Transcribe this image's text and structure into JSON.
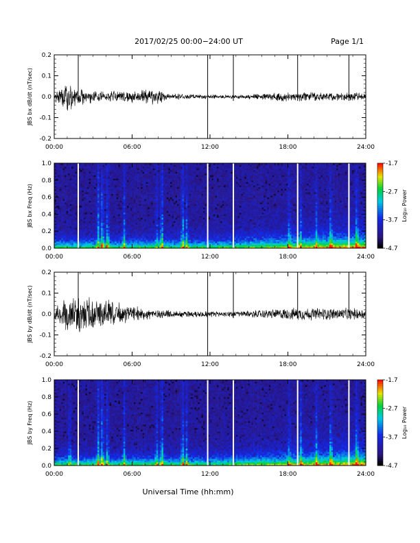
{
  "header": {
    "title": "2017/02/25  00:00−24:00 UT",
    "page": "Page 1/1"
  },
  "xlabel": "Universal Time (hh:mm)",
  "time_ticks": [
    "00:00",
    "06:00",
    "12:00",
    "18:00",
    "24:00"
  ],
  "colorbar": {
    "label": "Log₁₀ Power",
    "ticks": [
      "-1.7",
      "-2.7",
      "-3.7",
      "-4.7"
    ],
    "range": [
      -4.7,
      -1.7
    ]
  },
  "colors": {
    "background": "#ffffff",
    "trace": "#000000",
    "spectrogram_background": "#2a1580",
    "gap": "#ffffff"
  },
  "chart_data": [
    {
      "type": "line",
      "panel": "bx-dbdt",
      "ylabel": "JBS bx dB/dt (nT/sec)",
      "ylim": [
        -0.2,
        0.2
      ],
      "yticks": [
        "0.2",
        "0.1",
        "0.0",
        "-0.1",
        "-0.2"
      ],
      "xlim_hours": [
        0,
        24
      ],
      "envelope": [
        {
          "hour": 0,
          "amp": 0.02
        },
        {
          "hour": 1,
          "amp": 0.08
        },
        {
          "hour": 2,
          "amp": 0.04
        },
        {
          "hour": 4,
          "amp": 0.03
        },
        {
          "hour": 8,
          "amp": 0.04
        },
        {
          "hour": 9,
          "amp": 0.015
        },
        {
          "hour": 14,
          "amp": 0.01
        },
        {
          "hour": 18,
          "amp": 0.025
        },
        {
          "hour": 24,
          "amp": 0.02
        }
      ],
      "spikes": [
        {
          "hour": 1.85,
          "min": -0.02,
          "max": 0.2
        },
        {
          "hour": 11.82,
          "min": -0.2,
          "max": 0.2
        },
        {
          "hour": 13.8,
          "min": -0.02,
          "max": 0.2
        },
        {
          "hour": 18.75,
          "min": -0.02,
          "max": 0.2
        },
        {
          "hour": 22.7,
          "min": -0.02,
          "max": 0.2
        }
      ]
    },
    {
      "type": "heatmap",
      "panel": "bx-spectrogram",
      "ylabel": "JBS bx Freq (Hz)",
      "ylim": [
        0.0,
        1.0
      ],
      "yticks": [
        "1.0",
        "0.8",
        "0.6",
        "0.4",
        "0.2",
        "0.0"
      ],
      "xlim_hours": [
        0,
        24
      ],
      "value_range_log10": [
        -4.7,
        -1.7
      ],
      "gaps_hours": [
        1.85,
        11.82,
        13.8,
        18.75,
        22.7
      ],
      "activity_bursts": [
        {
          "hour": 3.4,
          "level": 0.8
        },
        {
          "hour": 3.7,
          "level": 0.9
        },
        {
          "hour": 4.1,
          "level": 0.7
        },
        {
          "hour": 5.4,
          "level": 0.6
        },
        {
          "hour": 7.9,
          "level": 0.5
        },
        {
          "hour": 8.3,
          "level": 0.9
        },
        {
          "hour": 9.9,
          "level": 0.8
        },
        {
          "hour": 10.2,
          "level": 0.6
        },
        {
          "hour": 18.1,
          "level": 0.5
        },
        {
          "hour": 19.0,
          "level": 0.5
        },
        {
          "hour": 20.2,
          "level": 0.5
        },
        {
          "hour": 21.3,
          "level": 0.6
        },
        {
          "hour": 23.3,
          "level": 0.6
        }
      ]
    },
    {
      "type": "line",
      "panel": "by-dbdt",
      "ylabel": "JBS by dB/dt (nT/sec)",
      "ylim": [
        -0.2,
        0.2
      ],
      "yticks": [
        "0.2",
        "0.1",
        "0.0",
        "-0.1",
        "-0.2"
      ],
      "xlim_hours": [
        0,
        24
      ],
      "envelope": [
        {
          "hour": 0,
          "amp": 0.03
        },
        {
          "hour": 1,
          "amp": 0.1
        },
        {
          "hour": 2,
          "amp": 0.09
        },
        {
          "hour": 4,
          "amp": 0.08
        },
        {
          "hour": 6,
          "amp": 0.04
        },
        {
          "hour": 9,
          "amp": 0.02
        },
        {
          "hour": 14,
          "amp": 0.015
        },
        {
          "hour": 19,
          "amp": 0.035
        },
        {
          "hour": 24,
          "amp": 0.03
        }
      ],
      "spikes": [
        {
          "hour": 1.85,
          "min": -0.02,
          "max": 0.2
        },
        {
          "hour": 11.82,
          "min": -0.2,
          "max": 0.2
        },
        {
          "hour": 13.8,
          "min": -0.02,
          "max": 0.2
        },
        {
          "hour": 18.75,
          "min": -0.02,
          "max": 0.2
        },
        {
          "hour": 22.7,
          "min": -0.02,
          "max": 0.2
        }
      ]
    },
    {
      "type": "heatmap",
      "panel": "by-spectrogram",
      "ylabel": "JBS by Freq (Hz)",
      "ylim": [
        0.0,
        1.0
      ],
      "yticks": [
        "1.0",
        "0.8",
        "0.6",
        "0.4",
        "0.2",
        "0.0"
      ],
      "xlim_hours": [
        0,
        24
      ],
      "value_range_log10": [
        -4.7,
        -1.7
      ],
      "gaps_hours": [
        1.85,
        11.82,
        13.8,
        18.75,
        22.7
      ],
      "activity_bursts": [
        {
          "hour": 1.2,
          "level": 0.5
        },
        {
          "hour": 3.4,
          "level": 0.8
        },
        {
          "hour": 3.7,
          "level": 0.9
        },
        {
          "hour": 4.1,
          "level": 0.7
        },
        {
          "hour": 5.4,
          "level": 0.6
        },
        {
          "hour": 7.9,
          "level": 0.6
        },
        {
          "hour": 8.3,
          "level": 0.9
        },
        {
          "hour": 9.9,
          "level": 0.8
        },
        {
          "hour": 10.2,
          "level": 0.6
        },
        {
          "hour": 18.1,
          "level": 0.5
        },
        {
          "hour": 19.0,
          "level": 0.6
        },
        {
          "hour": 20.2,
          "level": 0.6
        },
        {
          "hour": 21.3,
          "level": 0.7
        },
        {
          "hour": 23.3,
          "level": 0.7
        }
      ]
    }
  ]
}
